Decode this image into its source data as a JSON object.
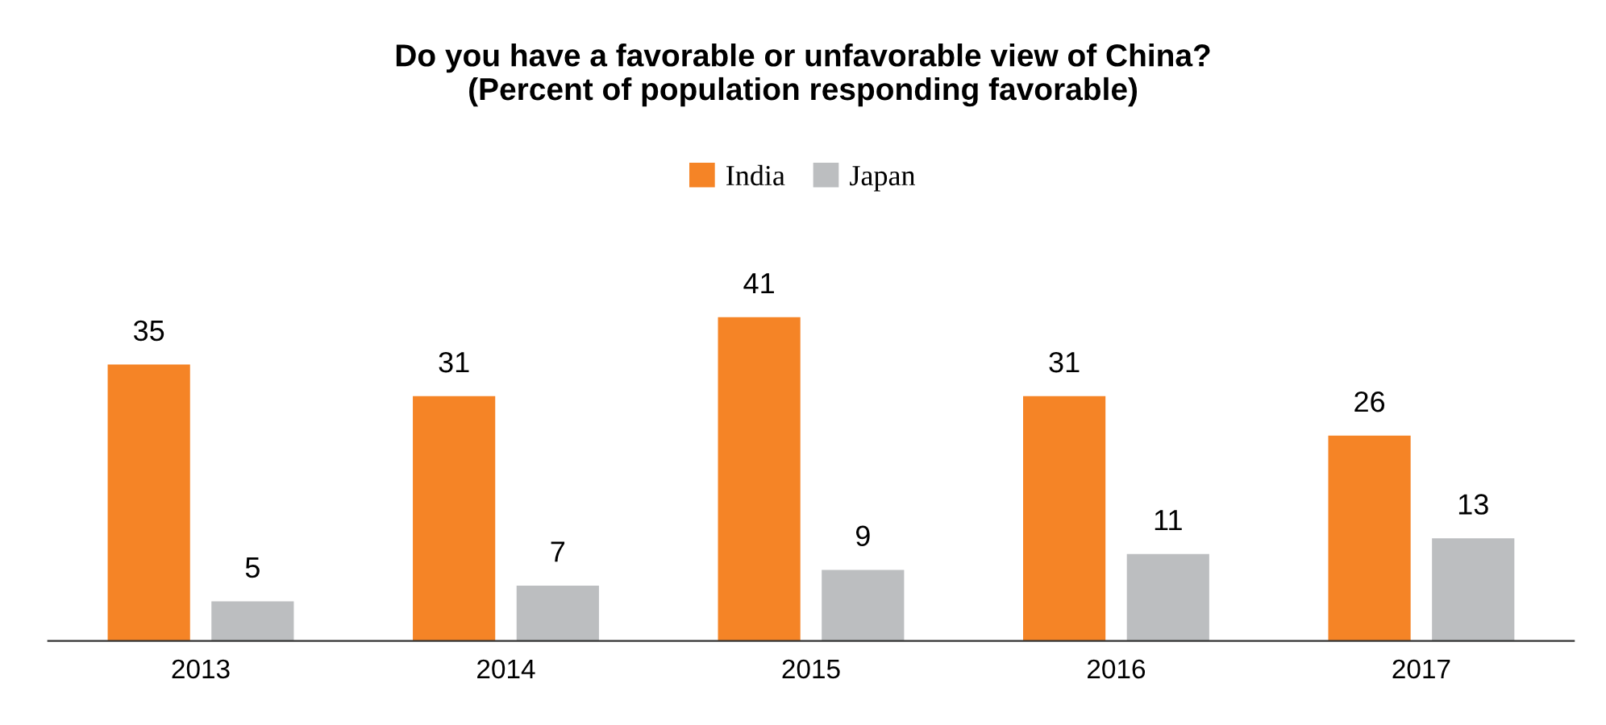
{
  "chart_data": {
    "type": "bar",
    "title": "Do you have a favorable or unfavorable view of China?\n(Percent of population responding favorable)",
    "categories": [
      "2013",
      "2014",
      "2015",
      "2016",
      "2017"
    ],
    "series": [
      {
        "name": "India",
        "color": "#f58426",
        "values": [
          35,
          31,
          41,
          31,
          26
        ]
      },
      {
        "name": "Japan",
        "color": "#bcbec0",
        "values": [
          5,
          7,
          9,
          11,
          13
        ]
      }
    ],
    "data_labels": true,
    "legend": "top",
    "grid": false,
    "tick_labels": "x"
  }
}
